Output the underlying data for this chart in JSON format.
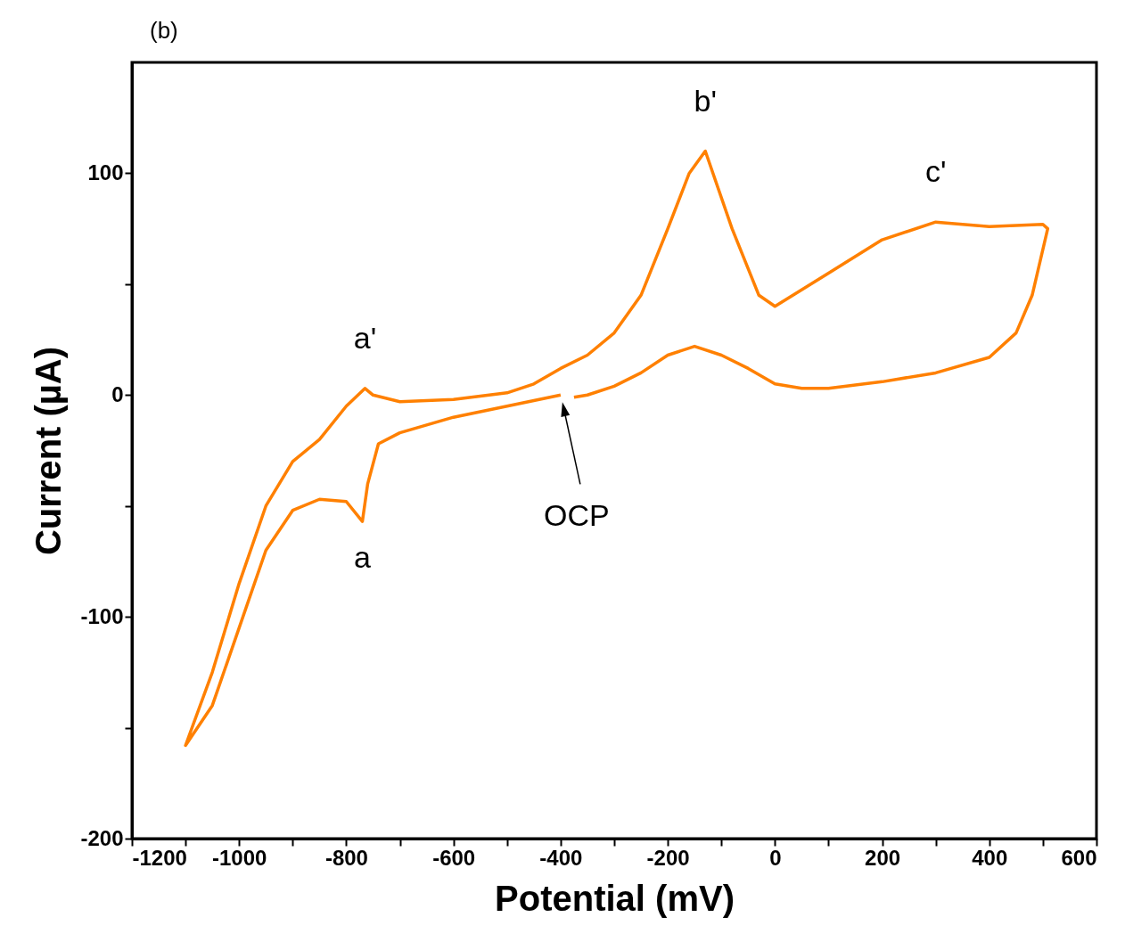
{
  "chart_data": {
    "type": "line",
    "xlabel": "Potential (mV)",
    "ylabel": "Current (µA)",
    "x": [
      -375,
      -350,
      -300,
      -250,
      -200,
      -150,
      -100,
      -50,
      0,
      50,
      100,
      200,
      300,
      400,
      450,
      480,
      509,
      500,
      400,
      300,
      200,
      100,
      0,
      -30,
      -80,
      -130,
      -160,
      -200,
      -250,
      -300,
      -350,
      -400,
      -450,
      -500,
      -600,
      -700,
      -750,
      -765,
      -800,
      -850,
      -900,
      -950,
      -1000,
      -1050,
      -1100,
      -1050,
      -1000,
      -950,
      -900,
      -850,
      -800,
      -770,
      -760,
      -740,
      -700,
      -600,
      -500,
      -400
    ],
    "series": [
      {
        "color": "#ff8000",
        "values": [
          -1,
          0,
          4,
          10,
          18,
          22,
          18,
          12,
          5,
          3,
          3,
          6,
          10,
          17,
          28,
          45,
          75,
          77,
          76,
          78,
          70,
          55,
          40,
          45,
          75,
          110,
          100,
          75,
          45,
          28,
          18,
          12,
          5,
          1,
          -2,
          -3,
          0,
          3,
          -5,
          -20,
          -30,
          -50,
          -85,
          -125,
          -158,
          -140,
          -105,
          -70,
          -52,
          -47,
          -48,
          -57,
          -40,
          -22,
          -17,
          -10,
          -5,
          0
        ]
      }
    ],
    "xlim": [
      -1200,
      600
    ],
    "ylim": [
      -200,
      150
    ],
    "xticks": [
      -1200,
      {
        "value": -1100,
        "label": null
      },
      -1000,
      {
        "value": -900,
        "label": null
      },
      -800,
      {
        "value": -700,
        "label": null
      },
      -600,
      {
        "value": -500,
        "label": null
      },
      -400,
      {
        "value": -300,
        "label": null
      },
      -200,
      {
        "value": -100,
        "label": null
      },
      0,
      {
        "value": 100,
        "label": null
      },
      200,
      {
        "value": 300,
        "label": null
      },
      400,
      {
        "value": 500,
        "label": null
      },
      600
    ],
    "yticks": [
      -200,
      {
        "value": -150,
        "label": null
      },
      -100,
      {
        "value": -50,
        "label": null
      },
      0,
      {
        "value": 50,
        "label": null
      },
      100
    ],
    "grid": false,
    "marker": "none",
    "line_style": "solid",
    "annotations": [
      "(b)",
      {
        "text": "a'",
        "x": -765,
        "y": 3
      },
      {
        "text": "a",
        "x": -770,
        "y": -57
      },
      {
        "text": "b'",
        "x": -130,
        "y": 110
      },
      {
        "text": "c'",
        "x": 300,
        "y": 78
      },
      "OCP"
    ]
  }
}
